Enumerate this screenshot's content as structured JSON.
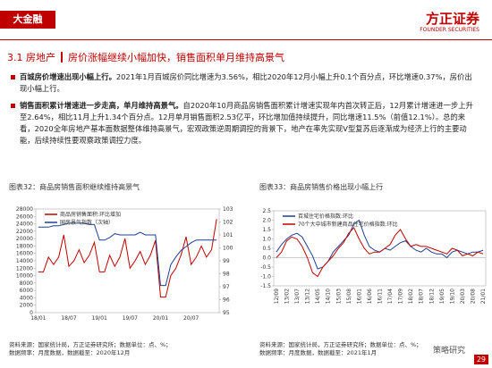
{
  "header": {
    "tag": "大金融",
    "logo": "方正证券",
    "logo_en": "FOUNDER SECURITIES"
  },
  "section": {
    "title": "3.1 房地产",
    "subtitle": "房价涨幅继续小幅加快，销售面积单月维持高景气"
  },
  "bullets": [
    {
      "bold": "百城房价增速出现小幅上行。",
      "text": "2021年1月百城房价同比增速为3.56%，相比2020年12月小幅上升0.1个百分点，环比增速0.37%，房价出现小幅上行。"
    },
    {
      "bold": "销售面积累计增速进一步走高，单月维持高景气。",
      "text": "自2020年10月商品房销售面积累计增速实现年内首次转正后，12月累计增速进一步上升至2.64%，相比11月上升1.34个百分点。12月单月销售面积2.53亿平，环比增加值持续提升，同比增速11.5%（前值12.1%）。总的来看，2020全年房地产基本面数据整体维持高景气，宏观政策逆周期调控的背景下，地产在率先实现V型复苏后逐渐成为经济上行的主要动能，后续持续性要观察政策调控力度。"
    }
  ],
  "chart_data": [
    {
      "type": "line",
      "title": "图表32：商品房销售面积继续维持高景气",
      "categories": [
        "18/01",
        null,
        null,
        null,
        null,
        null,
        "18/07",
        null,
        null,
        null,
        null,
        null,
        "19/01",
        null,
        null,
        null,
        null,
        null,
        "19/07",
        null,
        null,
        null,
        null,
        null,
        "20/01",
        null,
        null,
        null,
        null,
        null,
        "20/07",
        null,
        null,
        null,
        null,
        null
      ],
      "series": [
        {
          "name": "商品房销售面积:环比增加",
          "color": "#c00000",
          "values": [
            11000,
            11000,
            15000,
            13000,
            15000,
            21000,
            12500,
            14000,
            17000,
            13500,
            15500,
            19000,
            11000,
            11000,
            15500,
            12500,
            15000,
            20000,
            12000,
            14000,
            16500,
            13000,
            15500,
            19500,
            4200,
            4200,
            10000,
            12000,
            15500,
            20500,
            13000,
            15000,
            18000,
            15000,
            17000,
            25300
          ]
        },
        {
          "name": "国房景气指数（次轴）",
          "color": "#1f3f8f",
          "axis": "y2",
          "values": [
            101.6,
            101.6,
            101.6,
            101.7,
            101.7,
            101.8,
            101.9,
            101.9,
            101.9,
            101.9,
            101.8,
            101.8,
            100.6,
            100.6,
            100.8,
            101.1,
            101.0,
            101.0,
            101.0,
            101.0,
            101.2,
            101.0,
            101.0,
            101.0,
            97.1,
            97.1,
            98.7,
            99.3,
            99.8,
            100.1,
            100.4,
            100.6,
            100.6,
            100.6,
            100.6,
            100.6
          ]
        }
      ],
      "ylim": [
        0,
        28000
      ],
      "yticks": [
        0,
        2000,
        4000,
        6000,
        8000,
        10000,
        12000,
        14000,
        16000,
        18000,
        20000,
        22000,
        24000,
        26000,
        28000
      ],
      "y2lim": [
        95,
        103
      ],
      "y2ticks": [
        95,
        96,
        97,
        98,
        99,
        100,
        101,
        102,
        103
      ],
      "source": "资料来源：国家统计局，方正证券研究所；数据单位：点、%；",
      "freq": "数据频率：月度数据，数据截至：2020年12月"
    },
    {
      "type": "line",
      "title": "图表33：商品房销售价格出现小幅上行",
      "categories": [
        "12/09",
        null,
        "13/02",
        null,
        "13/07",
        null,
        "13/12",
        null,
        "14/05",
        null,
        "14/10",
        null,
        "15/03",
        null,
        "15/08",
        null,
        "16/01",
        null,
        "16/06",
        null,
        "16/11",
        null,
        "17/04",
        null,
        "17/09",
        null,
        "18/02",
        null,
        "18/07",
        null,
        "18/12",
        null,
        "19/05",
        null,
        "19/10",
        null,
        "20/03",
        null,
        "20/08",
        null,
        "21/01"
      ],
      "series": [
        {
          "name": "百城住宅价格指数:环比",
          "color": "#1f3f8f",
          "values": [
            0.3,
            0.7,
            1.0,
            1.2,
            1.3,
            1.1,
            0.6,
            0.1,
            -0.6,
            -0.5,
            -0.2,
            0.3,
            0.6,
            0.9,
            1.2,
            1.8,
            2.0,
            1.2,
            0.6,
            0.4,
            0.3,
            0.5,
            0.4,
            0.6,
            0.8,
            0.9,
            0.6,
            0.4,
            0.3,
            0.5,
            0.3,
            0.2,
            0.2,
            0.0,
            0.3,
            0.4,
            0.3,
            0.2,
            0.3,
            0.3,
            0.4
          ]
        },
        {
          "name": "70个大中城市新建商品住宅价格指数:环比",
          "color": "#c00000",
          "values": [
            0.0,
            0.3,
            0.9,
            1.1,
            1.0,
            0.6,
            0.0,
            -0.8,
            -1.0,
            -0.5,
            -0.2,
            0.1,
            0.5,
            0.8,
            1.3,
            1.6,
            1.0,
            0.5,
            0.2,
            0.3,
            0.3,
            0.5,
            0.7,
            1.2,
            1.5,
            1.0,
            0.6,
            0.7,
            0.6,
            0.6,
            0.5,
            0.4,
            0.3,
            0.2,
            0.5,
            0.4,
            0.1,
            0.2,
            0.1,
            0.3,
            0.2
          ]
        }
      ],
      "ylim": [
        -1.5,
        2.5
      ],
      "yticks": [
        -1.5,
        {
          "value": -1,
          "label": "-1.0"
        },
        -0.5,
        {
          "value": 0,
          "label": "0.0"
        },
        0.5,
        {
          "value": 1,
          "label": "1.0"
        },
        1.5,
        {
          "value": 2,
          "label": "2.0"
        },
        2.5
      ],
      "source": "资料来源：国家统计局，方正证券研究所；数据单位：点、%；",
      "freq": "数据频率：月度数据，数据截至：2021年1月"
    }
  ],
  "footer": {
    "watermark": "策略研究",
    "page": "29"
  }
}
